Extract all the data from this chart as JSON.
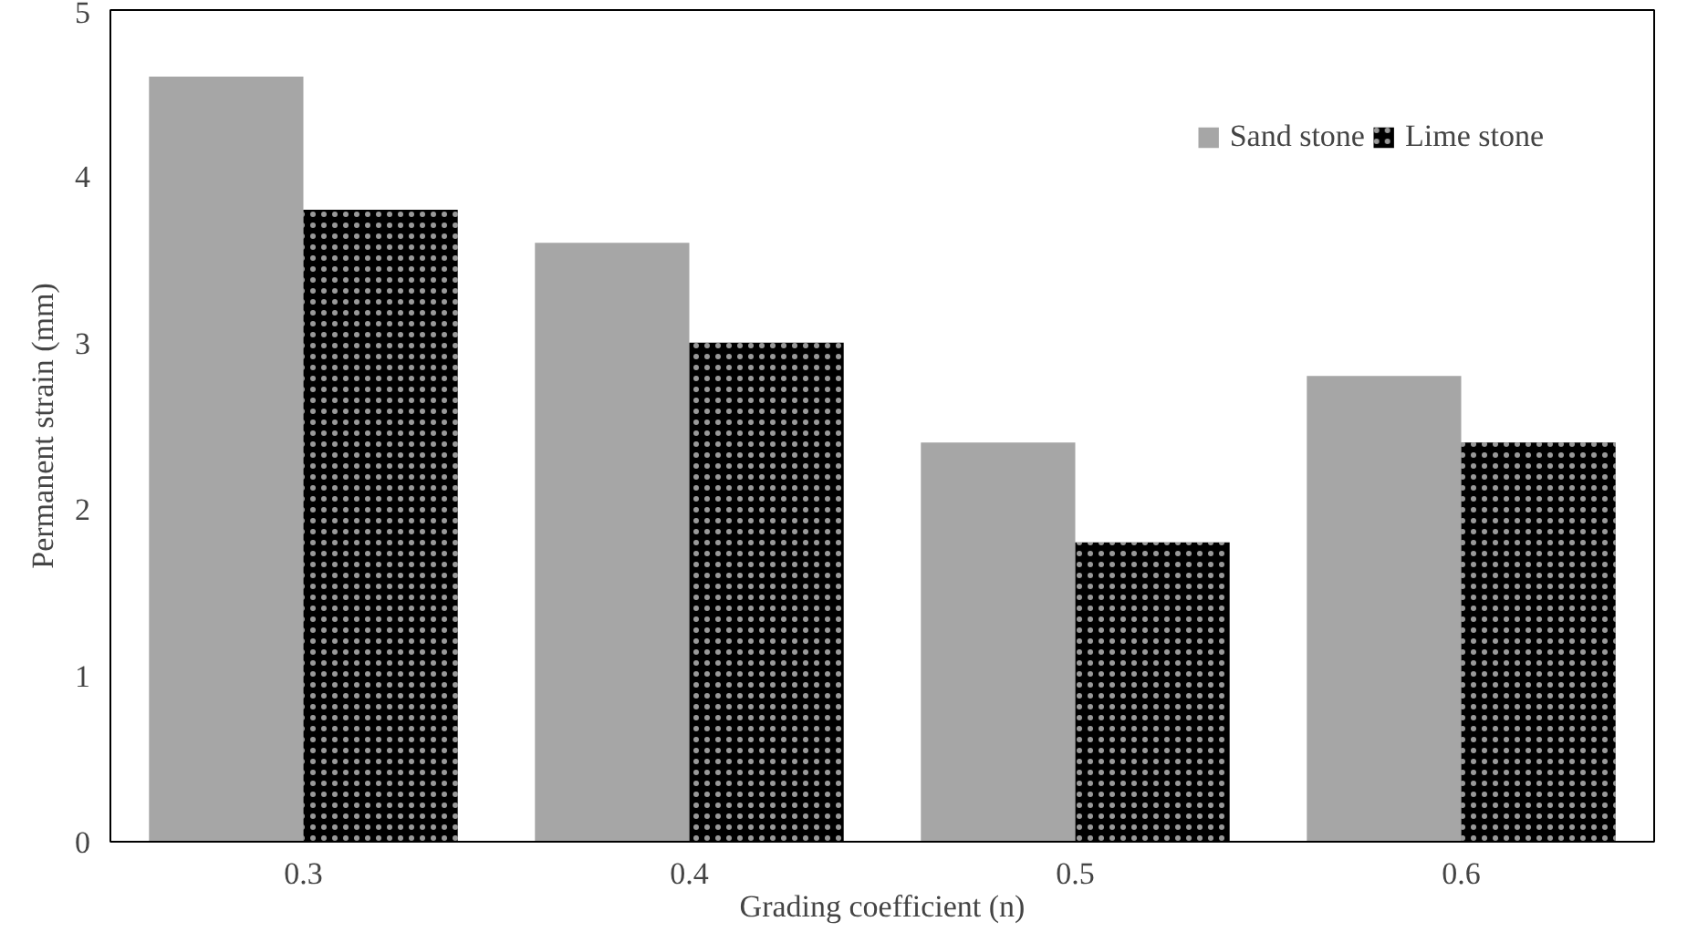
{
  "chart_data": {
    "type": "bar",
    "xlabel": "Grading coefficient (n)",
    "ylabel": "Permanent strain (mm)",
    "categories": [
      "0.3",
      "0.4",
      "0.5",
      "0.6"
    ],
    "series": [
      {
        "name": "Sand stone",
        "color": "#a6a6a6",
        "values": [
          4.6,
          3.6,
          2.4,
          2.8
        ]
      },
      {
        "name": "Lime stone",
        "color": "#000000",
        "values": [
          3.8,
          3.0,
          1.8,
          2.4
        ]
      }
    ],
    "ylim": [
      0,
      5
    ],
    "yticks": [
      0,
      1,
      2,
      3,
      4,
      5
    ],
    "grid": false,
    "legend": "top right"
  }
}
